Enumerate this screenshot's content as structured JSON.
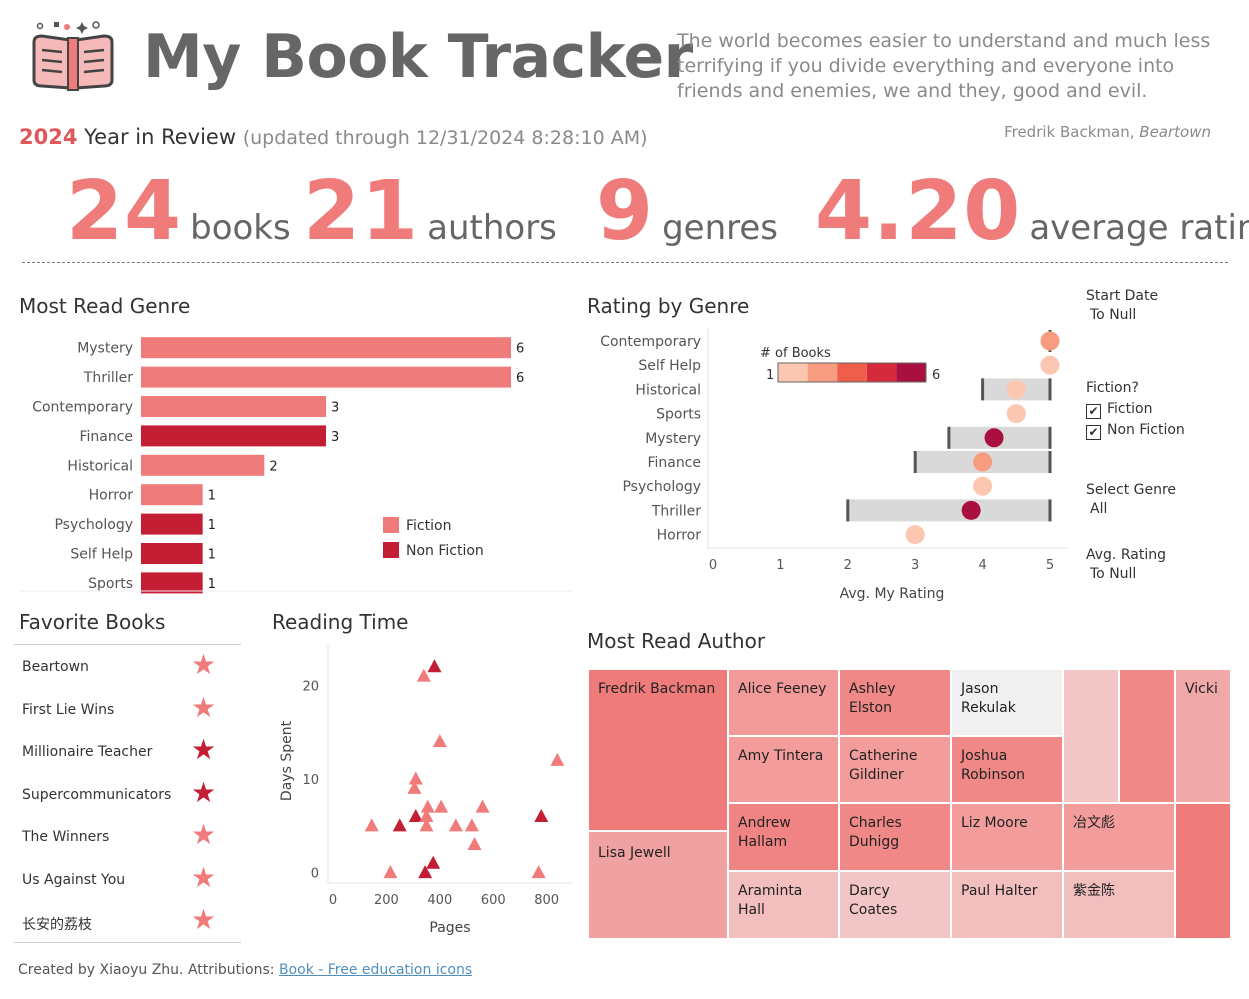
{
  "header": {
    "title": "My Book Tracker",
    "quote": "The world becomes easier to understand and much less terrifying if you divide everything and everyone into friends and enemies, we and they, good and evil.",
    "quote_author": "Fredrik Backman,",
    "quote_book": "Beartown",
    "year": "2024",
    "subtitle": "Year in Review",
    "updated": "(updated through 12/31/2024 8:28:10 AM)"
  },
  "kpis": [
    {
      "value": "24",
      "label": "books"
    },
    {
      "value": "21",
      "label": "authors"
    },
    {
      "value": "9",
      "label": "genres"
    },
    {
      "value": "4.20",
      "label": "average rating"
    }
  ],
  "colors": {
    "fiction": "#f07b7b",
    "non_fiction": "#c41e35",
    "accent": "#e15759",
    "kpi": "#f07b7b",
    "range_bar": "#d9d9d9",
    "star_fiction": "#f07b7b",
    "star_non_fiction": "#c41e35",
    "rating_scale": [
      "#fcc7b1",
      "#f89c7f",
      "#ef5e4b",
      "#d52a3b",
      "#a9103f"
    ]
  },
  "sections": {
    "most_read_genre": "Most Read Genre",
    "rating_by_genre": "Rating by Genre",
    "favorite_books": "Favorite Books",
    "reading_time": "Reading Time",
    "most_read_author": "Most Read Author"
  },
  "filters": {
    "start_date_label": "Start Date",
    "start_date_value": "To Null",
    "fiction_label": "Fiction?",
    "fiction_option": "Fiction",
    "non_fiction_option": "Non Fiction",
    "check_mark": "✔",
    "genre_label": "Select Genre",
    "genre_value": "All",
    "rating_label": "Avg. Rating",
    "rating_value": "To Null"
  },
  "chart_data": [
    {
      "id": "most_read_genre",
      "type": "bar",
      "orientation": "horizontal",
      "categories": [
        "Mystery",
        "Thriller",
        "Contemporary",
        "Finance",
        "Historical",
        "Horror",
        "Psychology",
        "Self Help",
        "Sports"
      ],
      "values": [
        6,
        6,
        3,
        3,
        2,
        1,
        1,
        1,
        1
      ],
      "kind": [
        "Fiction",
        "Fiction",
        "Fiction",
        "Non Fiction",
        "Fiction",
        "Fiction",
        "Non Fiction",
        "Non Fiction",
        "Non Fiction"
      ],
      "legend": [
        "Fiction",
        "Non Fiction"
      ],
      "xlim": [
        0,
        6
      ]
    },
    {
      "id": "rating_by_genre",
      "type": "scatter",
      "categories": [
        "Contemporary",
        "Self Help",
        "Historical",
        "Sports",
        "Mystery",
        "Finance",
        "Psychology",
        "Thriller",
        "Horror"
      ],
      "avg_rating": [
        5.0,
        5.0,
        4.5,
        4.5,
        4.17,
        4.0,
        4.0,
        3.83,
        3.0
      ],
      "min_rating": [
        5,
        5,
        4,
        4.5,
        3.5,
        3,
        4,
        2,
        3
      ],
      "max_rating": [
        5,
        5,
        5,
        4.5,
        5,
        5,
        4,
        5,
        3
      ],
      "num_books": [
        3,
        1,
        2,
        1,
        6,
        3,
        1,
        6,
        1
      ],
      "xlabel": "Avg. My Rating",
      "xlim": [
        0,
        5
      ],
      "xticks": [
        "0",
        "1",
        "2",
        "3",
        "4",
        "5"
      ],
      "size_legend_title": "# of Books",
      "size_legend_min": "1",
      "size_legend_max": "6"
    },
    {
      "id": "reading_time",
      "type": "scatter",
      "xlabel": "Pages",
      "ylabel": "Days Spent",
      "xlim": [
        0,
        850
      ],
      "ylim": [
        -1,
        24
      ],
      "xticks": [
        "0",
        "200",
        "400",
        "600",
        "800"
      ],
      "yticks": [
        "0",
        "10",
        "20"
      ],
      "points": [
        {
          "x": 380,
          "y": 22,
          "kind": "Non Fiction"
        },
        {
          "x": 340,
          "y": 21,
          "kind": "Fiction"
        },
        {
          "x": 400,
          "y": 14,
          "kind": "Fiction"
        },
        {
          "x": 840,
          "y": 12,
          "kind": "Fiction"
        },
        {
          "x": 310,
          "y": 10,
          "kind": "Fiction"
        },
        {
          "x": 305,
          "y": 9,
          "kind": "Fiction"
        },
        {
          "x": 355,
          "y": 7,
          "kind": "Fiction"
        },
        {
          "x": 405,
          "y": 7,
          "kind": "Fiction"
        },
        {
          "x": 560,
          "y": 7,
          "kind": "Fiction"
        },
        {
          "x": 310,
          "y": 6,
          "kind": "Non Fiction"
        },
        {
          "x": 350,
          "y": 6,
          "kind": "Fiction"
        },
        {
          "x": 780,
          "y": 6,
          "kind": "Non Fiction"
        },
        {
          "x": 145,
          "y": 5,
          "kind": "Fiction"
        },
        {
          "x": 250,
          "y": 5,
          "kind": "Non Fiction"
        },
        {
          "x": 350,
          "y": 5,
          "kind": "Fiction"
        },
        {
          "x": 460,
          "y": 5,
          "kind": "Fiction"
        },
        {
          "x": 520,
          "y": 5,
          "kind": "Fiction"
        },
        {
          "x": 530,
          "y": 3,
          "kind": "Fiction"
        },
        {
          "x": 375,
          "y": 1,
          "kind": "Non Fiction"
        },
        {
          "x": 215,
          "y": 0,
          "kind": "Fiction"
        },
        {
          "x": 345,
          "y": 0,
          "kind": "Non Fiction"
        },
        {
          "x": 770,
          "y": 0,
          "kind": "Fiction"
        }
      ]
    }
  ],
  "favorite_books": [
    {
      "title": "Beartown",
      "kind": "Fiction"
    },
    {
      "title": "First Lie Wins",
      "kind": "Fiction"
    },
    {
      "title": "Millionaire Teacher",
      "kind": "Non Fiction"
    },
    {
      "title": "Supercommunicators",
      "kind": "Non Fiction"
    },
    {
      "title": "The Winners",
      "kind": "Fiction"
    },
    {
      "title": "Us Against You",
      "kind": "Fiction"
    },
    {
      "title": "长安的荔枝",
      "kind": "Fiction"
    }
  ],
  "star_glyph": "★",
  "authors": [
    {
      "name": "Fredrik Backman",
      "color": "#f07b7b"
    },
    {
      "name": "Lisa Jewell",
      "color": "#f0a1a1"
    },
    {
      "name": "Alice Feeney",
      "color": "#f29999"
    },
    {
      "name": "Ashley Elston",
      "color": "#f08888"
    },
    {
      "name": "Jason Rekulak",
      "color": "#f0f0f0"
    },
    {
      "name": "Amy Tintera",
      "color": "#f29c9c"
    },
    {
      "name": "Catherine Gildiner",
      "color": "#f29c9c"
    },
    {
      "name": "Joshua Robinson",
      "color": "#f08888"
    },
    {
      "name": "Andrew Hallam",
      "color": "#f08484"
    },
    {
      "name": "Charles Duhigg",
      "color": "#f08888"
    },
    {
      "name": "Liz Moore",
      "color": "#f29c9c"
    },
    {
      "name": "冶文彪",
      "color": "#f29c9c"
    },
    {
      "name": "Araminta Hall",
      "color": "#f2bebe"
    },
    {
      "name": "Darcy Coates",
      "color": "#f2c6c6"
    },
    {
      "name": "Paul Halter",
      "color": "#f2bebe"
    },
    {
      "name": "紫金陈",
      "color": "#f2bebe"
    },
    {
      "name": "",
      "color": "#f2c6c6"
    },
    {
      "name": "",
      "color": "#f08888"
    },
    {
      "name": "Vicki",
      "color": "#f0a8a8"
    },
    {
      "name": "",
      "color": "#f07b7b"
    }
  ],
  "footer": {
    "text": "Created by Xiaoyu Zhu. Attributions:",
    "link": "Book - Free education icons"
  }
}
